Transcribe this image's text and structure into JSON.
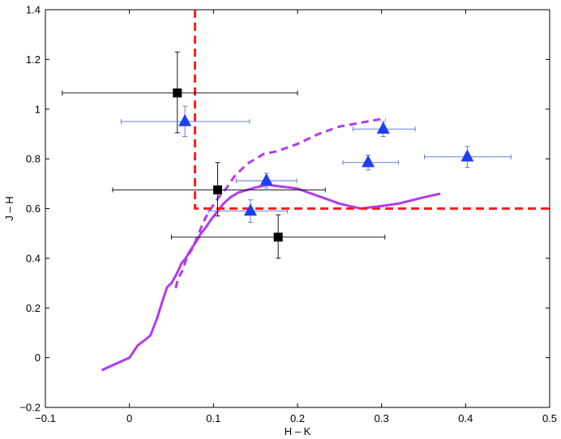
{
  "chart_data": {
    "type": "scatter",
    "title": "",
    "xlabel": "H – K",
    "ylabel": "J – H",
    "xlim": [
      -0.1,
      0.5
    ],
    "ylim": [
      -0.2,
      1.4
    ],
    "xticks": [
      -0.1,
      0,
      0.1,
      0.2,
      0.3,
      0.4,
      0.5
    ],
    "xtick_labels": [
      "−0.1",
      "0",
      "0.1",
      "0.2",
      "0.3",
      "0.4",
      "0.5"
    ],
    "yticks": [
      -0.2,
      0,
      0.2,
      0.4,
      0.6,
      0.8,
      1,
      1.2,
      1.4
    ],
    "ytick_labels": [
      "−0.2",
      "0",
      "0.2",
      "0.4",
      "0.6",
      "0.8",
      "1",
      "1.2",
      "1.4"
    ],
    "grid": false,
    "series": [
      {
        "kind": "errorbar-scatter",
        "marker": "square",
        "color": "#000000",
        "errorbar_color": "#000000",
        "points": [
          {
            "x": 0.057,
            "y": 1.065,
            "xerr": [
              0.137,
              0.143
            ],
            "yerr": [
              0.16,
              0.165
            ]
          },
          {
            "x": 0.105,
            "y": 0.675,
            "xerr": [
              0.125,
              0.128
            ],
            "yerr": [
              0.105,
              0.11
            ]
          },
          {
            "x": 0.177,
            "y": 0.485,
            "xerr": [
              0.127,
              0.127
            ],
            "yerr": [
              0.085,
              0.09
            ]
          }
        ]
      },
      {
        "kind": "errorbar-scatter",
        "marker": "triangle",
        "color": "#1f3ff5",
        "errorbar_color": "#5a6fd6",
        "points": [
          {
            "x": 0.066,
            "y": 0.95,
            "xerr": [
              0.076,
              0.077
            ],
            "yerr": [
              0.06,
              0.062
            ]
          },
          {
            "x": 0.163,
            "y": 0.712,
            "xerr": [
              0.036,
              0.036
            ],
            "yerr": [
              0.03,
              0.03
            ]
          },
          {
            "x": 0.144,
            "y": 0.59,
            "xerr": [
              0.05,
              0.044
            ],
            "yerr": [
              0.045,
              0.045
            ]
          },
          {
            "x": 0.302,
            "y": 0.92,
            "xerr": [
              0.036,
              0.038
            ],
            "yerr": [
              0.03,
              0.03
            ]
          },
          {
            "x": 0.284,
            "y": 0.785,
            "xerr": [
              0.03,
              0.036
            ],
            "yerr": [
              0.03,
              0.03
            ]
          },
          {
            "x": 0.402,
            "y": 0.808,
            "xerr": [
              0.051,
              0.052
            ],
            "yerr": [
              0.042,
              0.042
            ]
          }
        ]
      },
      {
        "kind": "line",
        "style": "solid",
        "color": "#b03cf0",
        "x": [
          -0.033,
          0,
          0.01,
          0.018,
          0.025,
          0.033,
          0.04,
          0.045,
          0.05,
          0.055,
          0.058,
          0.062,
          0.067,
          0.072,
          0.075,
          0.08,
          0.085,
          0.09,
          0.097,
          0.105,
          0.112,
          0.12,
          0.13,
          0.14,
          0.15,
          0.165,
          0.2,
          0.225,
          0.25,
          0.275,
          0.3,
          0.32,
          0.35,
          0.37
        ],
        "y": [
          -0.05,
          0,
          0.05,
          0.07,
          0.09,
          0.16,
          0.235,
          0.285,
          0.3,
          0.33,
          0.35,
          0.38,
          0.4,
          0.43,
          0.445,
          0.47,
          0.5,
          0.52,
          0.555,
          0.59,
          0.62,
          0.645,
          0.665,
          0.675,
          0.685,
          0.695,
          0.68,
          0.65,
          0.62,
          0.6,
          0.61,
          0.62,
          0.645,
          0.66
        ]
      },
      {
        "kind": "line",
        "style": "dashed",
        "color": "#b03cf0",
        "x": [
          0.055,
          0.058,
          0.063,
          0.068,
          0.075,
          0.08,
          0.085,
          0.09,
          0.097,
          0.105,
          0.115,
          0.125,
          0.14,
          0.15,
          0.16,
          0.175,
          0.2,
          0.225,
          0.25,
          0.275,
          0.29,
          0.3,
          0.305
        ],
        "y": [
          0.28,
          0.32,
          0.35,
          0.4,
          0.44,
          0.48,
          0.52,
          0.56,
          0.6,
          0.64,
          0.68,
          0.73,
          0.78,
          0.8,
          0.82,
          0.83,
          0.86,
          0.9,
          0.93,
          0.945,
          0.955,
          0.96,
          0.958
        ]
      },
      {
        "kind": "line",
        "style": "dashed-thick",
        "color": "#ff1f1f",
        "x": [
          0.078,
          0.078,
          0.5
        ],
        "y": [
          1.4,
          0.6,
          0.6
        ]
      }
    ]
  }
}
